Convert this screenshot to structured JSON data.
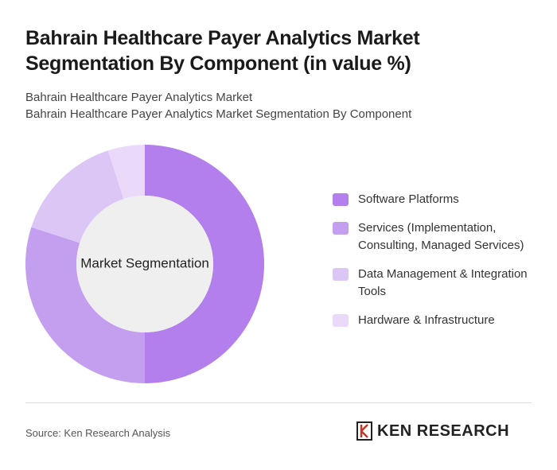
{
  "chart_data": {
    "type": "donut",
    "title": "Bahrain Healthcare Payer Analytics Market Segmentation By Component (in value %)",
    "subtitle": "Bahrain Healthcare Payer Analytics Market",
    "subtitle2": "Bahrain Healthcare Payer Analytics Market Segmentation By Component",
    "center_label": "Market Segmentation",
    "categories": [
      "Software Platforms",
      "Services (Implementation, Consulting, Managed Services)",
      "Data Management & Integration Tools",
      "Hardware & Infrastructure"
    ],
    "values": [
      50,
      30,
      15,
      5
    ],
    "colors": [
      "#b27fec",
      "#c49ff0",
      "#dbc6f6",
      "#ead9f9"
    ]
  },
  "source": "Source: Ken Research Analysis",
  "brand": "KEN RESEARCH"
}
